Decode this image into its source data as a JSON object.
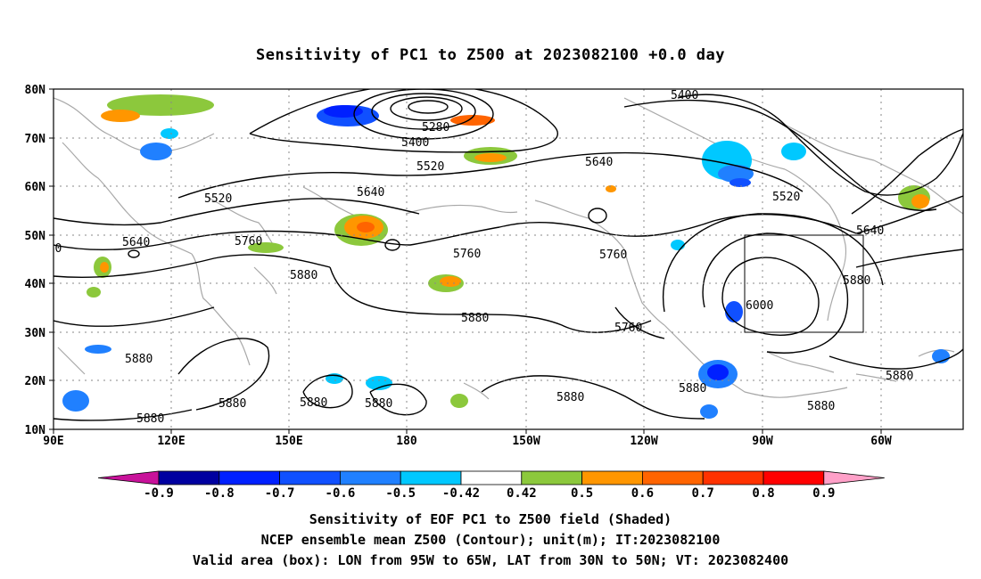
{
  "title": "Sensitivity of PC1 to Z500 at 2023082100 +0.0 day",
  "lat_ticks": [
    "80N",
    "70N",
    "60N",
    "50N",
    "40N",
    "30N",
    "20N",
    "10N"
  ],
  "lon_ticks": [
    "90E",
    "120E",
    "150E",
    "180",
    "150W",
    "120W",
    "90W",
    "60W"
  ],
  "contour_labels": [
    {
      "text": "5400"
    },
    {
      "text": "5280"
    },
    {
      "text": "5400"
    },
    {
      "text": "5520"
    },
    {
      "text": "5640"
    },
    {
      "text": "5520"
    },
    {
      "text": "5640"
    },
    {
      "text": "5520"
    },
    {
      "text": "5640"
    },
    {
      "text": "5760"
    },
    {
      "text": "5760"
    },
    {
      "text": "5760"
    },
    {
      "text": "5640"
    },
    {
      "text": "5760"
    },
    {
      "text": "5880"
    },
    {
      "text": "5880"
    },
    {
      "text": "5760"
    },
    {
      "text": "6000"
    },
    {
      "text": "5880"
    },
    {
      "text": "5880"
    },
    {
      "text": "5880"
    },
    {
      "text": "5880"
    },
    {
      "text": "5880"
    },
    {
      "text": "5880"
    },
    {
      "text": "5880"
    },
    {
      "text": "5880"
    },
    {
      "text": "5880"
    },
    {
      "text": "5880"
    }
  ],
  "colorbar": {
    "labels": [
      "-0.9",
      "-0.8",
      "-0.7",
      "-0.6",
      "-0.5",
      "-0.42",
      "0.42",
      "0.5",
      "0.6",
      "0.7",
      "0.8",
      "0.9"
    ],
    "colors": [
      "#c8129a",
      "#0000a0",
      "#0020ff",
      "#1050ff",
      "#2080ff",
      "#00c8ff",
      "#ffffff",
      "#8cc83c",
      "#ff9600",
      "#ff6400",
      "#ff3200",
      "#ff0000",
      "#ffa0c8"
    ]
  },
  "captions": {
    "line1": "Sensitivity of EOF PC1 to Z500 field (Shaded)",
    "line2": "NCEP ensemble mean Z500 (Contour); unit(m); IT:2023082100",
    "line3": "Valid area (box): LON from 95W to 65W, LAT from 30N to 50N; VT: 2023082400"
  }
}
